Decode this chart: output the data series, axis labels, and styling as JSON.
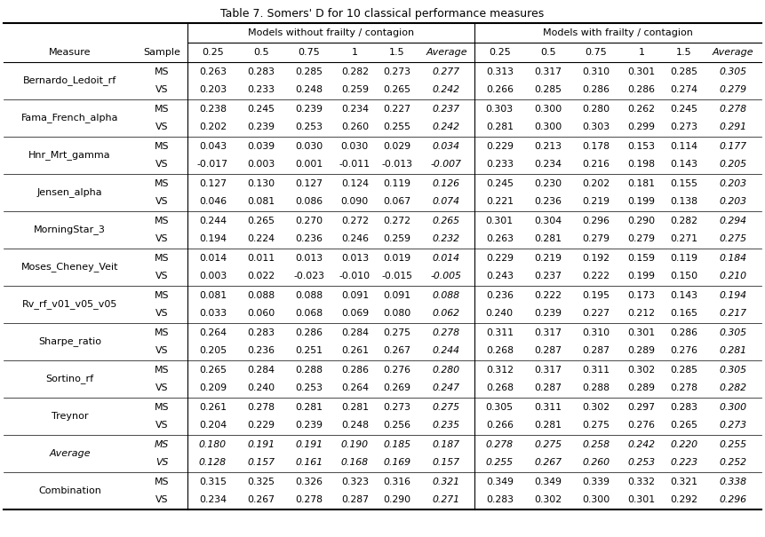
{
  "title": "Table 7. Somers' D for 10 classical performance measures",
  "header_group1": "Models without frailty / contagion",
  "header_group2": "Models with frailty / contagion",
  "col_headers": [
    "Measure",
    "Sample",
    "0.25",
    "0.5",
    "0.75",
    "1",
    "1.5",
    "Average",
    "0.25",
    "0.5",
    "0.75",
    "1",
    "1.5",
    "Average"
  ],
  "rows": [
    [
      "Bernardo_Ledoit_rf",
      "MS",
      "0.263",
      "0.283",
      "0.285",
      "0.282",
      "0.273",
      "0.277",
      "0.313",
      "0.317",
      "0.310",
      "0.301",
      "0.285",
      "0.305"
    ],
    [
      "",
      "VS",
      "0.203",
      "0.233",
      "0.248",
      "0.259",
      "0.265",
      "0.242",
      "0.266",
      "0.285",
      "0.286",
      "0.286",
      "0.274",
      "0.279"
    ],
    [
      "Fama_French_alpha",
      "MS",
      "0.238",
      "0.245",
      "0.239",
      "0.234",
      "0.227",
      "0.237",
      "0.303",
      "0.300",
      "0.280",
      "0.262",
      "0.245",
      "0.278"
    ],
    [
      "",
      "VS",
      "0.202",
      "0.239",
      "0.253",
      "0.260",
      "0.255",
      "0.242",
      "0.281",
      "0.300",
      "0.303",
      "0.299",
      "0.273",
      "0.291"
    ],
    [
      "Hnr_Mrt_gamma",
      "MS",
      "0.043",
      "0.039",
      "0.030",
      "0.030",
      "0.029",
      "0.034",
      "0.229",
      "0.213",
      "0.178",
      "0.153",
      "0.114",
      "0.177"
    ],
    [
      "",
      "VS",
      "-0.017",
      "0.003",
      "0.001",
      "-0.011",
      "-0.013",
      "-0.007",
      "0.233",
      "0.234",
      "0.216",
      "0.198",
      "0.143",
      "0.205"
    ],
    [
      "Jensen_alpha",
      "MS",
      "0.127",
      "0.130",
      "0.127",
      "0.124",
      "0.119",
      "0.126",
      "0.245",
      "0.230",
      "0.202",
      "0.181",
      "0.155",
      "0.203"
    ],
    [
      "",
      "VS",
      "0.046",
      "0.081",
      "0.086",
      "0.090",
      "0.067",
      "0.074",
      "0.221",
      "0.236",
      "0.219",
      "0.199",
      "0.138",
      "0.203"
    ],
    [
      "MorningStar_3",
      "MS",
      "0.244",
      "0.265",
      "0.270",
      "0.272",
      "0.272",
      "0.265",
      "0.301",
      "0.304",
      "0.296",
      "0.290",
      "0.282",
      "0.294"
    ],
    [
      "",
      "VS",
      "0.194",
      "0.224",
      "0.236",
      "0.246",
      "0.259",
      "0.232",
      "0.263",
      "0.281",
      "0.279",
      "0.279",
      "0.271",
      "0.275"
    ],
    [
      "Moses_Cheney_Veit",
      "MS",
      "0.014",
      "0.011",
      "0.013",
      "0.013",
      "0.019",
      "0.014",
      "0.229",
      "0.219",
      "0.192",
      "0.159",
      "0.119",
      "0.184"
    ],
    [
      "",
      "VS",
      "0.003",
      "0.022",
      "-0.023",
      "-0.010",
      "-0.015",
      "-0.005",
      "0.243",
      "0.237",
      "0.222",
      "0.199",
      "0.150",
      "0.210"
    ],
    [
      "Rv_rf_v01_v05_v05",
      "MS",
      "0.081",
      "0.088",
      "0.088",
      "0.091",
      "0.091",
      "0.088",
      "0.236",
      "0.222",
      "0.195",
      "0.173",
      "0.143",
      "0.194"
    ],
    [
      "",
      "VS",
      "0.033",
      "0.060",
      "0.068",
      "0.069",
      "0.080",
      "0.062",
      "0.240",
      "0.239",
      "0.227",
      "0.212",
      "0.165",
      "0.217"
    ],
    [
      "Sharpe_ratio",
      "MS",
      "0.264",
      "0.283",
      "0.286",
      "0.284",
      "0.275",
      "0.278",
      "0.311",
      "0.317",
      "0.310",
      "0.301",
      "0.286",
      "0.305"
    ],
    [
      "",
      "VS",
      "0.205",
      "0.236",
      "0.251",
      "0.261",
      "0.267",
      "0.244",
      "0.268",
      "0.287",
      "0.287",
      "0.289",
      "0.276",
      "0.281"
    ],
    [
      "Sortino_rf",
      "MS",
      "0.265",
      "0.284",
      "0.288",
      "0.286",
      "0.276",
      "0.280",
      "0.312",
      "0.317",
      "0.311",
      "0.302",
      "0.285",
      "0.305"
    ],
    [
      "",
      "VS",
      "0.209",
      "0.240",
      "0.253",
      "0.264",
      "0.269",
      "0.247",
      "0.268",
      "0.287",
      "0.288",
      "0.289",
      "0.278",
      "0.282"
    ],
    [
      "Treynor",
      "MS",
      "0.261",
      "0.278",
      "0.281",
      "0.281",
      "0.273",
      "0.275",
      "0.305",
      "0.311",
      "0.302",
      "0.297",
      "0.283",
      "0.300"
    ],
    [
      "",
      "VS",
      "0.204",
      "0.229",
      "0.239",
      "0.248",
      "0.256",
      "0.235",
      "0.266",
      "0.281",
      "0.275",
      "0.276",
      "0.265",
      "0.273"
    ],
    [
      "Average",
      "MS",
      "0.180",
      "0.191",
      "0.191",
      "0.190",
      "0.185",
      "0.187",
      "0.278",
      "0.275",
      "0.258",
      "0.242",
      "0.220",
      "0.255"
    ],
    [
      "",
      "VS",
      "0.128",
      "0.157",
      "0.161",
      "0.168",
      "0.169",
      "0.157",
      "0.255",
      "0.267",
      "0.260",
      "0.253",
      "0.223",
      "0.252"
    ],
    [
      "Combination",
      "MS",
      "0.315",
      "0.325",
      "0.326",
      "0.323",
      "0.316",
      "0.321",
      "0.349",
      "0.349",
      "0.339",
      "0.332",
      "0.321",
      "0.338"
    ],
    [
      "",
      "VS",
      "0.234",
      "0.267",
      "0.278",
      "0.287",
      "0.290",
      "0.271",
      "0.283",
      "0.302",
      "0.300",
      "0.301",
      "0.292",
      "0.296"
    ]
  ],
  "italic_measure_rows": [
    20,
    21
  ],
  "background_color": "#ffffff",
  "fig_width": 8.61,
  "fig_height": 6.05,
  "dpi": 100
}
